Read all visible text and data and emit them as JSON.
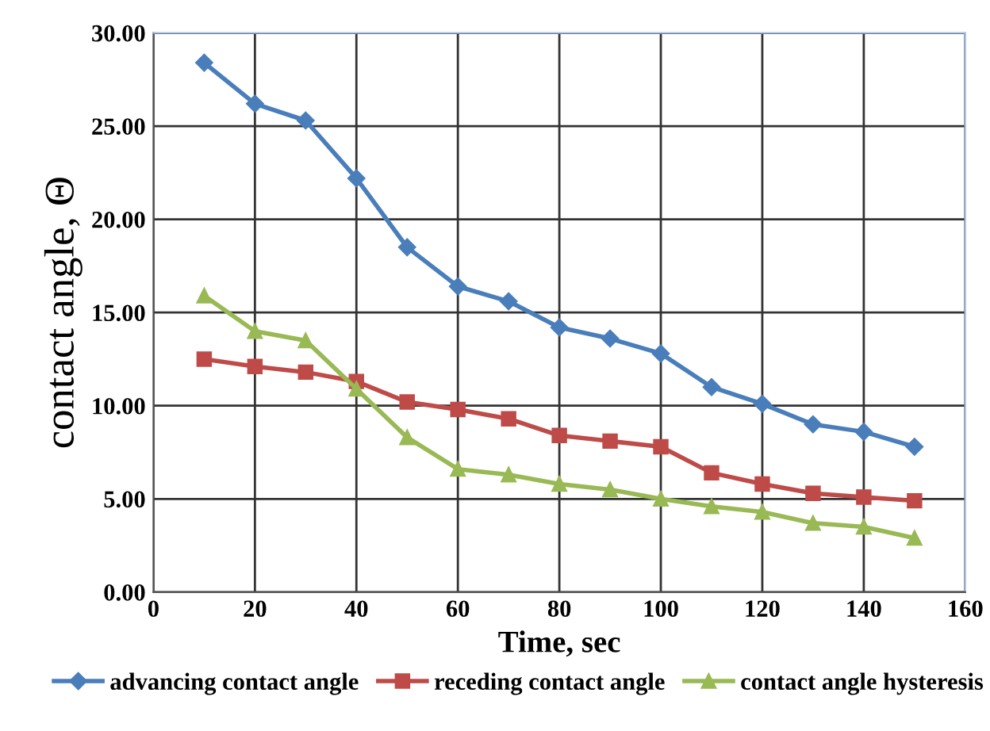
{
  "chart_data": {
    "type": "line",
    "xlabel": "Time, sec",
    "ylabel": "contact angle, Θ",
    "x": [
      10,
      20,
      30,
      40,
      50,
      60,
      70,
      80,
      90,
      100,
      110,
      120,
      130,
      140,
      150
    ],
    "series": [
      {
        "name": "advancing contact angle",
        "color": "#4a7ebb",
        "marker": "diamond",
        "values": [
          28.4,
          26.2,
          25.3,
          22.2,
          18.5,
          16.4,
          15.6,
          14.2,
          13.6,
          12.8,
          11.0,
          10.1,
          9.0,
          8.6,
          7.8
        ]
      },
      {
        "name": "receding contact angle",
        "color": "#be4b48",
        "marker": "square",
        "values": [
          12.5,
          12.1,
          11.8,
          11.3,
          10.2,
          9.8,
          9.3,
          8.4,
          8.1,
          7.8,
          6.4,
          5.8,
          5.3,
          5.1,
          4.9
        ]
      },
      {
        "name": "contact angle hysteresis",
        "color": "#98b954",
        "marker": "triangle",
        "values": [
          15.9,
          14.0,
          13.5,
          10.9,
          8.3,
          6.6,
          6.3,
          5.8,
          5.5,
          5.0,
          4.6,
          4.3,
          3.7,
          3.5,
          2.9
        ]
      }
    ],
    "xlim": [
      0,
      160
    ],
    "xticks": [
      0,
      20,
      40,
      60,
      80,
      100,
      120,
      140,
      160
    ],
    "ylim": [
      0,
      30
    ],
    "yticks": [
      {
        "value": 0,
        "label": "0.00"
      },
      {
        "value": 5,
        "label": "5.00"
      },
      {
        "value": 10,
        "label": "10.00"
      },
      {
        "value": 15,
        "label": "15.00"
      },
      {
        "value": 20,
        "label": "20.00"
      },
      {
        "value": 25,
        "label": "25.00"
      },
      {
        "value": 30,
        "label": "30.00"
      }
    ],
    "grid": true,
    "legend": "bottom",
    "line_style": "solid"
  }
}
